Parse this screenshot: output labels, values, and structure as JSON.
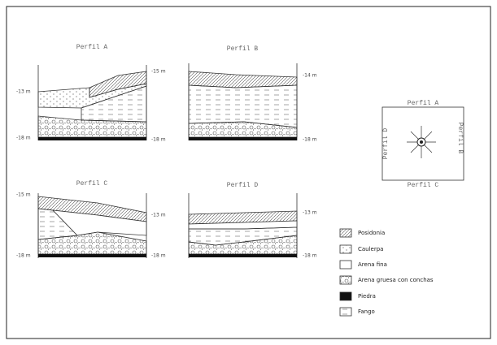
{
  "profiles": [
    {
      "title": "Perfil A",
      "depths": [
        "-13 m",
        "-18 m",
        "-15 m",
        "-18 m"
      ]
    },
    {
      "title": "Perfil B",
      "depths": [
        "-14 m",
        "-18 m"
      ]
    },
    {
      "title": "Perfil C",
      "depths": [
        "-15 m",
        "-18 m",
        "-13 m",
        "-18 m"
      ]
    },
    {
      "title": "Perfil D",
      "depths": [
        "-13 m",
        "-18 m"
      ]
    }
  ],
  "compass": {
    "top": "Perfil A",
    "right": "Perfil B",
    "bottom": "Perfil C",
    "left": "Perfil D"
  },
  "legend": [
    "Posidonia",
    "Caulerpa",
    "Arena fina",
    "Arena gruesa con conchas",
    "Piedra",
    "Fango"
  ]
}
